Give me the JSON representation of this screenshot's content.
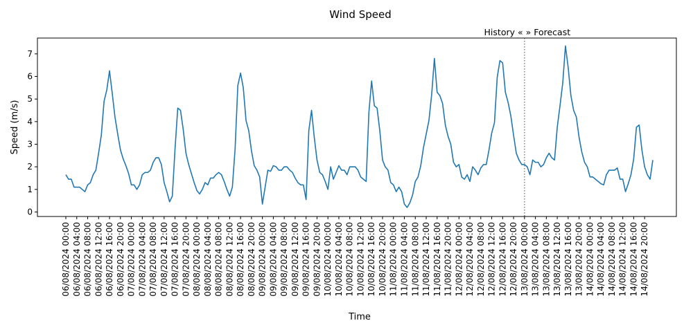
{
  "chart_data": {
    "type": "line",
    "title": "Wind Speed",
    "xlabel": "Time",
    "ylabel": "Speed (m/s)",
    "ylim": [
      -0.2,
      7.7
    ],
    "yticks": [
      0,
      1,
      2,
      3,
      4,
      5,
      6,
      7
    ],
    "grid": false,
    "annotation": "History «  » Forecast",
    "divider_index": 168,
    "xtick_step_hours": 4,
    "xtick_labels": [
      "06/08/2024 00:00",
      "06/08/2024 04:00",
      "06/08/2024 08:00",
      "06/08/2024 12:00",
      "06/08/2024 16:00",
      "06/08/2024 20:00",
      "07/08/2024 00:00",
      "07/08/2024 04:00",
      "07/08/2024 08:00",
      "07/08/2024 12:00",
      "07/08/2024 16:00",
      "07/08/2024 20:00",
      "08/08/2024 00:00",
      "08/08/2024 04:00",
      "08/08/2024 08:00",
      "08/08/2024 12:00",
      "08/08/2024 16:00",
      "08/08/2024 20:00",
      "09/08/2024 00:00",
      "09/08/2024 04:00",
      "09/08/2024 08:00",
      "09/08/2024 12:00",
      "09/08/2024 16:00",
      "09/08/2024 20:00",
      "10/08/2024 00:00",
      "10/08/2024 04:00",
      "10/08/2024 08:00",
      "10/08/2024 12:00",
      "10/08/2024 16:00",
      "10/08/2024 20:00",
      "11/08/2024 00:00",
      "11/08/2024 04:00",
      "11/08/2024 08:00",
      "11/08/2024 12:00",
      "11/08/2024 16:00",
      "11/08/2024 20:00",
      "12/08/2024 00:00",
      "12/08/2024 04:00",
      "12/08/2024 08:00",
      "12/08/2024 12:00",
      "12/08/2024 16:00",
      "12/08/2024 20:00",
      "13/08/2024 00:00",
      "13/08/2024 04:00",
      "13/08/2024 08:00",
      "13/08/2024 12:00",
      "13/08/2024 16:00",
      "13/08/2024 20:00",
      "14/08/2024 00:00",
      "14/08/2024 04:00",
      "14/08/2024 08:00",
      "14/08/2024 12:00",
      "14/08/2024 16:00",
      "14/08/2024 20:00"
    ],
    "series": [
      {
        "color": "#1f77b4",
        "values": [
          1.65,
          1.45,
          1.45,
          1.1,
          1.1,
          1.1,
          1.0,
          0.9,
          1.2,
          1.3,
          1.65,
          1.85,
          2.6,
          3.4,
          4.9,
          5.4,
          6.25,
          5.25,
          4.2,
          3.45,
          2.75,
          2.35,
          2.05,
          1.7,
          1.2,
          1.2,
          1.0,
          1.2,
          1.65,
          1.75,
          1.75,
          1.85,
          2.2,
          2.4,
          2.4,
          2.1,
          1.3,
          0.9,
          0.45,
          0.7,
          2.8,
          4.6,
          4.5,
          3.65,
          2.6,
          2.1,
          1.7,
          1.3,
          0.95,
          0.8,
          1.0,
          1.3,
          1.2,
          1.5,
          1.5,
          1.65,
          1.75,
          1.65,
          1.35,
          1.0,
          0.7,
          1.1,
          2.8,
          5.6,
          6.15,
          5.5,
          4.05,
          3.6,
          2.7,
          2.05,
          1.85,
          1.55,
          0.35,
          1.1,
          1.85,
          1.8,
          2.05,
          2.0,
          1.85,
          1.85,
          2.0,
          2.0,
          1.85,
          1.75,
          1.5,
          1.3,
          1.2,
          1.2,
          0.55,
          3.6,
          4.5,
          3.3,
          2.3,
          1.75,
          1.65,
          1.35,
          1.0,
          2.0,
          1.45,
          1.75,
          2.05,
          1.85,
          1.85,
          1.65,
          2.0,
          2.0,
          2.0,
          1.85,
          1.55,
          1.45,
          1.35,
          4.4,
          5.8,
          4.7,
          4.6,
          3.6,
          2.3,
          2.0,
          1.85,
          1.3,
          1.2,
          0.9,
          1.1,
          0.9,
          0.35,
          0.2,
          0.4,
          0.75,
          1.35,
          1.55,
          2.05,
          2.85,
          3.45,
          4.05,
          5.2,
          6.8,
          5.3,
          5.15,
          4.8,
          3.85,
          3.35,
          3.0,
          2.2,
          2.0,
          2.1,
          1.55,
          1.45,
          1.65,
          1.35,
          2.0,
          1.85,
          1.65,
          1.95,
          2.1,
          2.1,
          2.75,
          3.5,
          3.95,
          5.95,
          6.7,
          6.6,
          5.3,
          4.85,
          4.25,
          3.4,
          2.6,
          2.3,
          2.1,
          2.1,
          2.0,
          1.65,
          2.3,
          2.2,
          2.2,
          2.0,
          2.1,
          2.4,
          2.6,
          2.4,
          2.3,
          3.75,
          4.7,
          5.7,
          7.35,
          6.4,
          5.15,
          4.5,
          4.2,
          3.3,
          2.65,
          2.2,
          2.0,
          1.55,
          1.55,
          1.45,
          1.35,
          1.25,
          1.2,
          1.65,
          1.85,
          1.85,
          1.85,
          1.95,
          1.45,
          1.45,
          0.9,
          1.25,
          1.65,
          2.35,
          3.75,
          3.85,
          2.75,
          2.0,
          1.65,
          1.45,
          2.3
        ]
      }
    ]
  }
}
